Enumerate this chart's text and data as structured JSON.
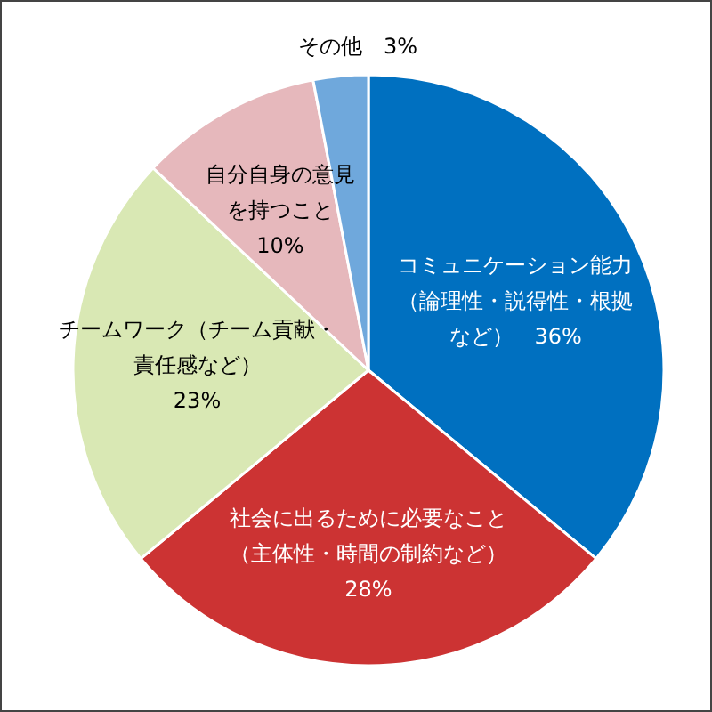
{
  "chart_data": {
    "type": "pie",
    "categories": [
      "コミュニケーション能力（論理性・説得性・根拠など）",
      "社会に出るために必要なこと（主体性・時間の制約など）",
      "チームワーク（チーム貢献・責任感など）",
      "自分自身の意見を持つこと",
      "その他"
    ],
    "values": [
      36,
      28,
      23,
      10,
      3
    ],
    "value_labels": [
      "36%",
      "28%",
      "23%",
      "10%",
      "3%"
    ],
    "colors": [
      "#0070c0",
      "#cc3333",
      "#d9e8b4",
      "#e6b8bc",
      "#6fa8dc"
    ],
    "legend": false
  }
}
